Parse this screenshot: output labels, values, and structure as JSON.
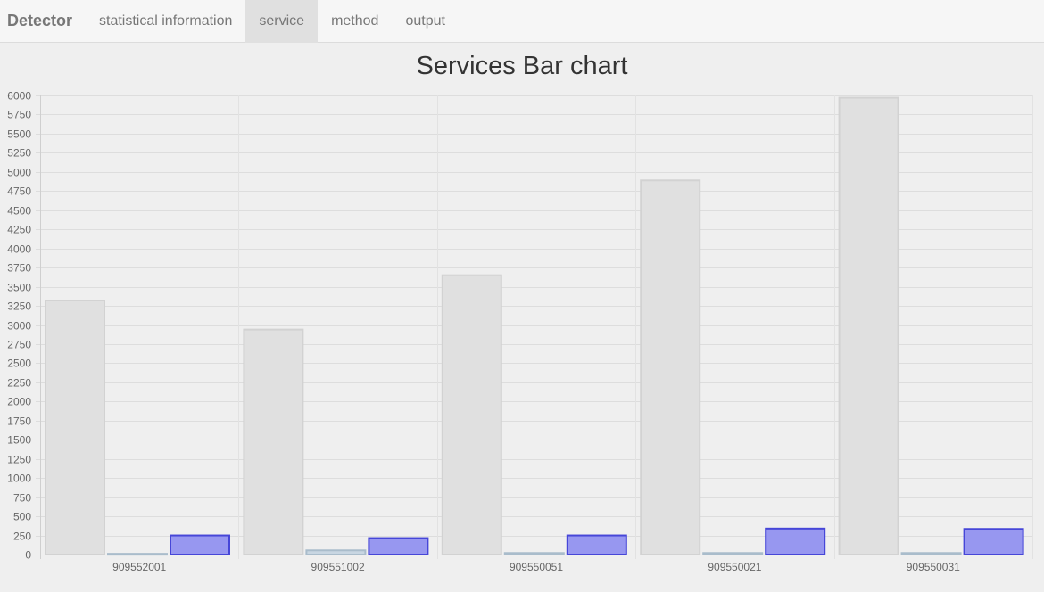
{
  "navbar": {
    "brand": "Detector",
    "items": [
      {
        "label": "statistical information",
        "active": false
      },
      {
        "label": "service",
        "active": true
      },
      {
        "label": "method",
        "active": false
      },
      {
        "label": "output",
        "active": false
      }
    ]
  },
  "chart_data": {
    "type": "bar",
    "title": "Services Bar chart",
    "xlabel": "",
    "ylabel": "",
    "categories": [
      "909552001",
      "909551002",
      "909550051",
      "909550021",
      "909550031"
    ],
    "series": [
      {
        "values": [
          3320,
          2940,
          3650,
          4890,
          5970
        ],
        "fill": "#e0e0e0",
        "stroke": "#d2d2d2"
      },
      {
        "values": [
          10,
          55,
          20,
          20,
          20
        ],
        "fill": "#c8d6e2",
        "stroke": "#a9bccb"
      },
      {
        "values": [
          250,
          215,
          250,
          340,
          335
        ],
        "fill": "#9797f0",
        "stroke": "#4646d8"
      }
    ],
    "ylim": [
      0,
      6000
    ],
    "yticks": [
      0,
      250,
      500,
      750,
      1000,
      1250,
      1500,
      1750,
      2000,
      2250,
      2500,
      2750,
      3000,
      3250,
      3500,
      3750,
      4000,
      4250,
      4500,
      4750,
      5000,
      5250,
      5500,
      5750,
      6000
    ],
    "grid": true,
    "legend": "none"
  }
}
